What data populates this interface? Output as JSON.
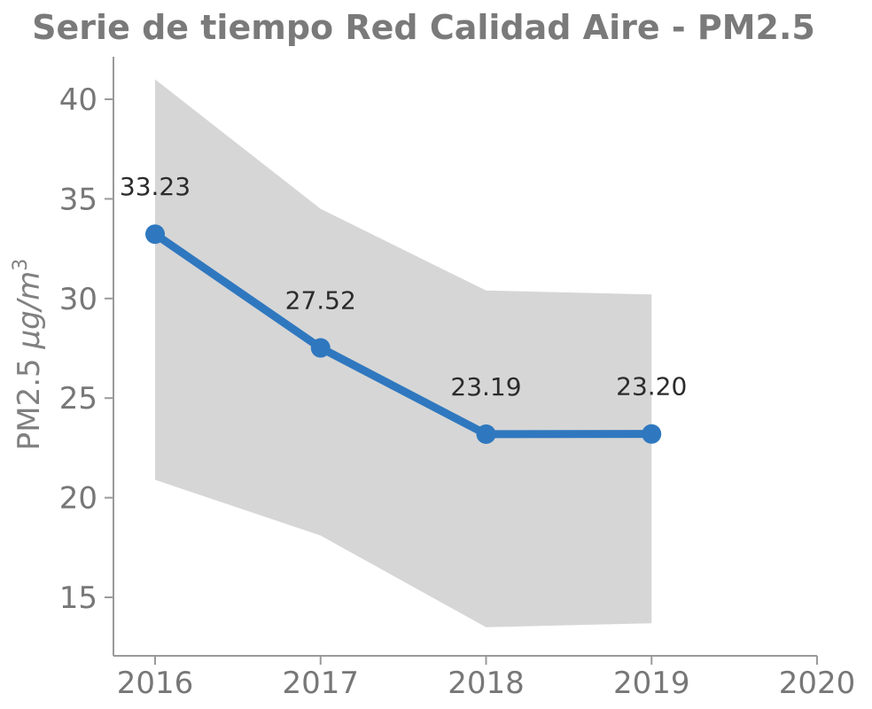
{
  "chart_data": {
    "type": "line",
    "title": "Serie de tiempo Red Calidad Aire - PM2.5",
    "xlabel": "",
    "ylabel": {
      "prefix": "PM2.5 ",
      "unit": "μg/m",
      "exponent": "3"
    },
    "x_ticks": [
      "2016",
      "2017",
      "2018",
      "2019",
      "2020"
    ],
    "y_ticks": [
      "15",
      "20",
      "25",
      "30",
      "35",
      "40"
    ],
    "xlim": [
      2016,
      2020
    ],
    "ylim": [
      13,
      42
    ],
    "x": [
      2016,
      2017,
      2018,
      2019
    ],
    "series": [
      {
        "values": [
          33.23,
          27.52,
          23.19,
          23.2
        ],
        "labels": [
          "33.23",
          "27.52",
          "23.19",
          "23.20"
        ],
        "color": "#2f78bf"
      }
    ],
    "band": {
      "upper": [
        41.0,
        34.5,
        30.4,
        30.2
      ],
      "lower": [
        20.9,
        18.1,
        13.5,
        13.7
      ],
      "color": "#d6d6d6"
    },
    "grid": false,
    "legend": "none"
  }
}
